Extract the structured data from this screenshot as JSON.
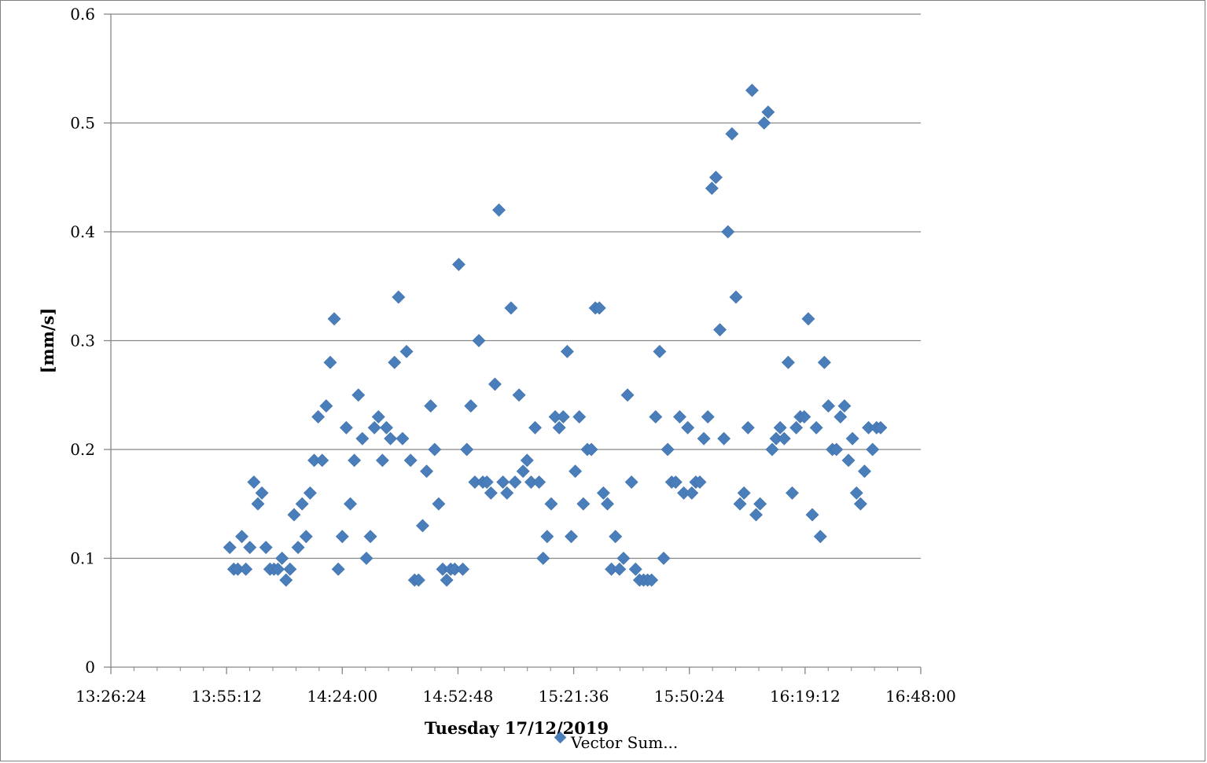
{
  "chart_data": {
    "type": "scatter",
    "title": "",
    "xlabel": "Tuesday 17/12/2019",
    "ylabel": "[mm/s]",
    "xlim": [
      "13:26:24",
      "16:48:00"
    ],
    "ylim": [
      0,
      0.6
    ],
    "x_ticks": [
      "13:26:24",
      "13:55:12",
      "14:24:00",
      "14:52:48",
      "15:21:36",
      "15:50:24",
      "16:19:12",
      "16:48:00"
    ],
    "y_ticks": [
      "0",
      "0.1",
      "0.2",
      "0.3",
      "0.4",
      "0.5",
      "0.6"
    ],
    "grid": "horizontal",
    "legend": "bottom",
    "marker_color": "#4a7ebb",
    "series": [
      {
        "name": "Vector Sum...",
        "points": [
          [
            "13:56:00",
            0.11
          ],
          [
            "13:57:00",
            0.09
          ],
          [
            "13:58:00",
            0.09
          ],
          [
            "13:59:00",
            0.12
          ],
          [
            "14:00:00",
            0.09
          ],
          [
            "14:01:00",
            0.11
          ],
          [
            "14:02:00",
            0.17
          ],
          [
            "14:03:00",
            0.15
          ],
          [
            "14:04:00",
            0.16
          ],
          [
            "14:05:00",
            0.11
          ],
          [
            "14:06:00",
            0.09
          ],
          [
            "14:07:00",
            0.09
          ],
          [
            "14:08:00",
            0.09
          ],
          [
            "14:09:00",
            0.1
          ],
          [
            "14:10:00",
            0.08
          ],
          [
            "14:11:00",
            0.09
          ],
          [
            "14:12:00",
            0.14
          ],
          [
            "14:13:00",
            0.11
          ],
          [
            "14:14:00",
            0.15
          ],
          [
            "14:15:00",
            0.12
          ],
          [
            "14:16:00",
            0.16
          ],
          [
            "14:17:00",
            0.19
          ],
          [
            "14:18:00",
            0.23
          ],
          [
            "14:19:00",
            0.19
          ],
          [
            "14:20:00",
            0.24
          ],
          [
            "14:21:00",
            0.28
          ],
          [
            "14:22:00",
            0.32
          ],
          [
            "14:23:00",
            0.09
          ],
          [
            "14:24:00",
            0.12
          ],
          [
            "14:25:00",
            0.22
          ],
          [
            "14:26:00",
            0.15
          ],
          [
            "14:27:00",
            0.19
          ],
          [
            "14:28:00",
            0.25
          ],
          [
            "14:29:00",
            0.21
          ],
          [
            "14:30:00",
            0.1
          ],
          [
            "14:31:00",
            0.12
          ],
          [
            "14:32:00",
            0.22
          ],
          [
            "14:33:00",
            0.23
          ],
          [
            "14:34:00",
            0.19
          ],
          [
            "14:35:00",
            0.22
          ],
          [
            "14:36:00",
            0.21
          ],
          [
            "14:37:00",
            0.28
          ],
          [
            "14:38:00",
            0.34
          ],
          [
            "14:39:00",
            0.21
          ],
          [
            "14:40:00",
            0.29
          ],
          [
            "14:41:00",
            0.19
          ],
          [
            "14:42:00",
            0.08
          ],
          [
            "14:43:00",
            0.08
          ],
          [
            "14:44:00",
            0.13
          ],
          [
            "14:45:00",
            0.18
          ],
          [
            "14:46:00",
            0.24
          ],
          [
            "14:47:00",
            0.2
          ],
          [
            "14:48:00",
            0.15
          ],
          [
            "14:49:00",
            0.09
          ],
          [
            "14:50:00",
            0.08
          ],
          [
            "14:51:00",
            0.09
          ],
          [
            "14:52:00",
            0.09
          ],
          [
            "14:53:00",
            0.37
          ],
          [
            "14:54:00",
            0.09
          ],
          [
            "14:55:00",
            0.2
          ],
          [
            "14:56:00",
            0.24
          ],
          [
            "14:57:00",
            0.17
          ],
          [
            "14:58:00",
            0.3
          ],
          [
            "14:59:00",
            0.17
          ],
          [
            "15:00:00",
            0.17
          ],
          [
            "15:01:00",
            0.16
          ],
          [
            "15:02:00",
            0.26
          ],
          [
            "15:03:00",
            0.42
          ],
          [
            "15:04:00",
            0.17
          ],
          [
            "15:05:00",
            0.16
          ],
          [
            "15:06:00",
            0.33
          ],
          [
            "15:07:00",
            0.17
          ],
          [
            "15:08:00",
            0.25
          ],
          [
            "15:09:00",
            0.18
          ],
          [
            "15:10:00",
            0.19
          ],
          [
            "15:11:00",
            0.17
          ],
          [
            "15:12:00",
            0.22
          ],
          [
            "15:13:00",
            0.17
          ],
          [
            "15:14:00",
            0.1
          ],
          [
            "15:15:00",
            0.12
          ],
          [
            "15:16:00",
            0.15
          ],
          [
            "15:17:00",
            0.23
          ],
          [
            "15:18:00",
            0.22
          ],
          [
            "15:19:00",
            0.23
          ],
          [
            "15:20:00",
            0.29
          ],
          [
            "15:21:00",
            0.12
          ],
          [
            "15:22:00",
            0.18
          ],
          [
            "15:23:00",
            0.23
          ],
          [
            "15:24:00",
            0.15
          ],
          [
            "15:25:00",
            0.2
          ],
          [
            "15:26:00",
            0.2
          ],
          [
            "15:27:00",
            0.33
          ],
          [
            "15:28:00",
            0.33
          ],
          [
            "15:29:00",
            0.16
          ],
          [
            "15:30:00",
            0.15
          ],
          [
            "15:31:00",
            0.09
          ],
          [
            "15:32:00",
            0.12
          ],
          [
            "15:33:00",
            0.09
          ],
          [
            "15:34:00",
            0.1
          ],
          [
            "15:35:00",
            0.25
          ],
          [
            "15:36:00",
            0.17
          ],
          [
            "15:37:00",
            0.09
          ],
          [
            "15:38:00",
            0.08
          ],
          [
            "15:39:00",
            0.08
          ],
          [
            "15:40:00",
            0.08
          ],
          [
            "15:41:00",
            0.08
          ],
          [
            "15:42:00",
            0.23
          ],
          [
            "15:43:00",
            0.29
          ],
          [
            "15:44:00",
            0.1
          ],
          [
            "15:45:00",
            0.2
          ],
          [
            "15:46:00",
            0.17
          ],
          [
            "15:47:00",
            0.17
          ],
          [
            "15:48:00",
            0.23
          ],
          [
            "15:49:00",
            0.16
          ],
          [
            "15:50:00",
            0.22
          ],
          [
            "15:51:00",
            0.16
          ],
          [
            "15:52:00",
            0.17
          ],
          [
            "15:53:00",
            0.17
          ],
          [
            "15:54:00",
            0.21
          ],
          [
            "15:55:00",
            0.23
          ],
          [
            "15:56:00",
            0.44
          ],
          [
            "15:57:00",
            0.45
          ],
          [
            "15:58:00",
            0.31
          ],
          [
            "15:59:00",
            0.21
          ],
          [
            "16:00:00",
            0.4
          ],
          [
            "16:01:00",
            0.49
          ],
          [
            "16:02:00",
            0.34
          ],
          [
            "16:03:00",
            0.15
          ],
          [
            "16:04:00",
            0.16
          ],
          [
            "16:05:00",
            0.22
          ],
          [
            "16:06:00",
            0.53
          ],
          [
            "16:07:00",
            0.14
          ],
          [
            "16:08:00",
            0.15
          ],
          [
            "16:09:00",
            0.5
          ],
          [
            "16:10:00",
            0.51
          ],
          [
            "16:11:00",
            0.2
          ],
          [
            "16:12:00",
            0.21
          ],
          [
            "16:13:00",
            0.22
          ],
          [
            "16:14:00",
            0.21
          ],
          [
            "16:15:00",
            0.28
          ],
          [
            "16:16:00",
            0.16
          ],
          [
            "16:17:00",
            0.22
          ],
          [
            "16:18:00",
            0.23
          ],
          [
            "16:19:00",
            0.23
          ],
          [
            "16:20:00",
            0.32
          ],
          [
            "16:21:00",
            0.14
          ],
          [
            "16:22:00",
            0.22
          ],
          [
            "16:23:00",
            0.12
          ],
          [
            "16:24:00",
            0.28
          ],
          [
            "16:25:00",
            0.24
          ],
          [
            "16:26:00",
            0.2
          ],
          [
            "16:27:00",
            0.2
          ],
          [
            "16:28:00",
            0.23
          ],
          [
            "16:29:00",
            0.24
          ],
          [
            "16:30:00",
            0.19
          ],
          [
            "16:31:00",
            0.21
          ],
          [
            "16:32:00",
            0.16
          ],
          [
            "16:33:00",
            0.15
          ],
          [
            "16:34:00",
            0.18
          ],
          [
            "16:35:00",
            0.22
          ],
          [
            "16:36:00",
            0.2
          ],
          [
            "16:37:00",
            0.22
          ],
          [
            "16:38:00",
            0.22
          ]
        ]
      }
    ]
  }
}
